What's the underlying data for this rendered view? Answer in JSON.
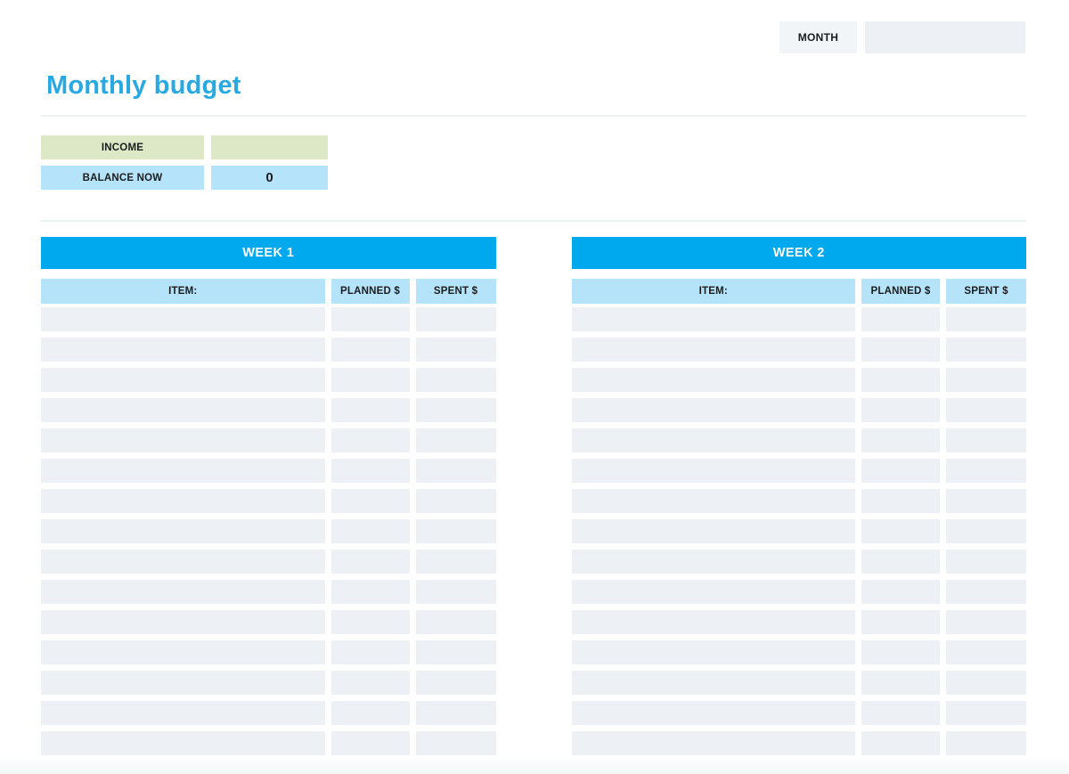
{
  "header": {
    "month_label": "MONTH",
    "month_value": ""
  },
  "page_title": "Monthly budget",
  "summary": {
    "income": {
      "label": "INCOME",
      "value": ""
    },
    "balance": {
      "label": "BALANCE NOW",
      "value": "0"
    }
  },
  "tables": [
    {
      "title": "WEEK 1",
      "columns": [
        "ITEM:",
        "PLANNED $",
        "SPENT $"
      ],
      "row_count": 15
    },
    {
      "title": "WEEK 2",
      "columns": [
        "ITEM:",
        "PLANNED $",
        "SPENT $"
      ],
      "row_count": 15
    }
  ],
  "colors": {
    "accent_blue": "#00a9ee",
    "title_blue": "#29a9e1",
    "light_blue": "#b5e3fa",
    "light_green": "#dde9c6",
    "row_gray": "#edf1f5"
  }
}
